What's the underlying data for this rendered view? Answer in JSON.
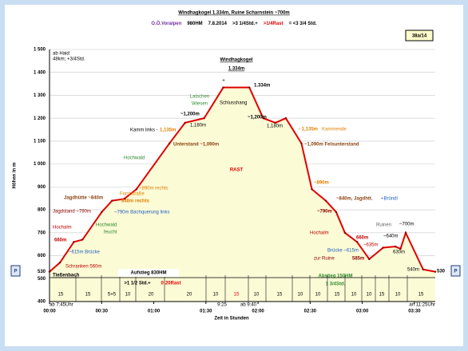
{
  "header": {
    "title": "Windhagkogel 1.334m, Ruine Scharnstein ~700m",
    "subtitle_parts": [
      {
        "text": "O.Ö.Voralpen",
        "color": "#7030a0"
      },
      {
        "text": "980HM",
        "color": "#000000"
      },
      {
        "text": "7.8.2014",
        "color": "#000000"
      },
      {
        "text": ">3 1/4Std.+",
        "color": "#000000"
      },
      {
        "text": ">1/4Rast",
        "color": "#e00000"
      },
      {
        "text": "= <3 3/4 Std.",
        "color": "#000000"
      }
    ],
    "badge": "38a/14",
    "note": [
      "ab Haid:",
      "48km; +3/4Std."
    ]
  },
  "chart_data": {
    "type": "line",
    "x_label": "Zeit in Stunden",
    "y_label": "Höhen in m",
    "x": [
      0,
      6,
      14,
      19,
      30,
      36,
      43,
      50,
      69,
      78,
      89,
      100,
      115,
      123,
      130,
      136,
      145,
      151,
      159,
      165,
      170,
      177,
      184,
      192,
      199,
      202,
      205,
      215,
      222
    ],
    "values": [
      530,
      570,
      660,
      670,
      790,
      840,
      848,
      890,
      1090,
      1180,
      1200,
      1334,
      1334,
      1200,
      1180,
      1200,
      1090,
      890,
      840,
      790,
      700,
      660,
      585,
      635,
      640,
      630,
      700,
      540,
      530
    ],
    "color": "#e00000",
    "fill": "#fbfbd6",
    "grid": true,
    "xlim": [
      0,
      222
    ],
    "ylim": [
      400,
      1500
    ],
    "yticks": [
      {
        "value": 1500,
        "label": "1 500"
      },
      {
        "value": 1400,
        "label": "1 400"
      },
      {
        "value": 1300,
        "label": "1 300"
      },
      {
        "value": 1200,
        "label": "1 200"
      },
      {
        "value": 1100,
        "label": "1 100"
      },
      {
        "value": 1000,
        "label": "1 000"
      },
      900,
      800,
      700,
      600,
      530,
      500,
      400
    ],
    "xticks": [
      {
        "value": 0,
        "label": "00:00"
      },
      {
        "value": 30,
        "label": "00:30"
      },
      {
        "value": 60,
        "label": "01:00"
      },
      {
        "value": 90,
        "label": "01:30"
      },
      {
        "value": 120,
        "label": "02:00"
      },
      {
        "value": 150,
        "label": "02:30"
      },
      {
        "value": 180,
        "label": "03:00"
      },
      {
        "value": 210,
        "label": "03:30"
      }
    ],
    "parking": "P",
    "start": "Tießenbach",
    "summit": [
      "Windhagkogel",
      "1.334m"
    ],
    "summit_label": "1.334m",
    "rast": "RAST",
    "times": [
      "ab 7:45Uhr",
      "9:25",
      "ab 9:40",
      "an 11:25Uhr"
    ],
    "ascent": [
      "Aufstieg 830HM",
      ">1 1/2 Std.+",
      "0:20Rast"
    ],
    "descent": [
      "Abstieg 150HM",
      "1 3/4Std."
    ],
    "segments": [
      15,
      15,
      "5+5",
      10,
      20,
      20,
      10,
      15,
      10,
      15,
      10,
      10,
      15,
      10,
      10,
      15,
      10,
      15
    ],
    "annotations": [
      {
        "text": "Hochalm",
        "color": "#c00000"
      },
      {
        "text": "660m",
        "color": "#c00000"
      },
      {
        "text": "Jagdstand ~790m",
        "color": "#8b0000"
      },
      {
        "text": "~615m Brücke",
        "color": "#1f5fbf"
      },
      {
        "text": "Schranken 560m",
        "color": "#c00000"
      },
      {
        "text": "Jagdhütte ~840m",
        "color": "#8b4513"
      },
      {
        "text": "Forststraße",
        "color": "#e08000"
      },
      {
        "text": "848m rechts",
        "color": "#e08000"
      },
      {
        "text": "~790m Bachquerung links",
        "color": "#1f5fbf"
      },
      {
        "text": "Hochwald",
        "color": "#2e8b2e"
      },
      {
        "text": "feucht",
        "color": "#2e8b2e"
      },
      {
        "text": "~890m rechts",
        "color": "#e08000"
      },
      {
        "text": "Hochwald",
        "color": "#2e8b2e"
      },
      {
        "text": "Unterstand ~1,090m",
        "color": "#8b4513"
      },
      {
        "text": "Kamm links -",
        "color": "#000000"
      },
      {
        "text": "1,135m",
        "color": "#e08000"
      },
      {
        "text": "~1,200m",
        "color": "#000000"
      },
      {
        "text": "1,180m",
        "color": "#000000"
      },
      {
        "text": "Latschen",
        "color": "#2e8b2e"
      },
      {
        "text": "Wiesen",
        "color": "#2e8b2e"
      },
      {
        "text": "Schlusshang",
        "color": "#000000"
      },
      {
        "text": "~1,200m",
        "color": "#000000"
      },
      {
        "text": "1,180m",
        "color": "#000000"
      },
      {
        "text": "- 1,135m",
        "color": "#e08000"
      },
      {
        "text": "Kammende",
        "color": "#e08000"
      },
      {
        "text": "~1,090m Felsunterstand",
        "color": "#8b4513"
      },
      {
        "text": "~890m",
        "color": "#e08000"
      },
      {
        "text": "~840m, Jagdhtt.",
        "color": "#8b4513"
      },
      {
        "text": "+Bründl",
        "color": "#1f5fbf"
      },
      {
        "text": "~790m",
        "color": "#8b0000"
      },
      {
        "text": "Hochalm",
        "color": "#c00000"
      },
      {
        "text": "660m",
        "color": "#c00000"
      },
      {
        "text": "~635m",
        "color": "#c00000"
      },
      {
        "text": "Brücke ~615m",
        "color": "#1f5fbf"
      },
      {
        "text": "zur Ruine",
        "color": "#8b0000"
      },
      {
        "text": "585m",
        "color": "#8b0000"
      },
      {
        "text": "~640m",
        "color": "#000000"
      },
      {
        "text": "630m",
        "color": "#000000"
      },
      {
        "text": "Ruinen",
        "color": "#666666"
      },
      {
        "text": "~700m",
        "color": "#000000"
      },
      {
        "text": "540m",
        "color": "#000000"
      }
    ]
  }
}
